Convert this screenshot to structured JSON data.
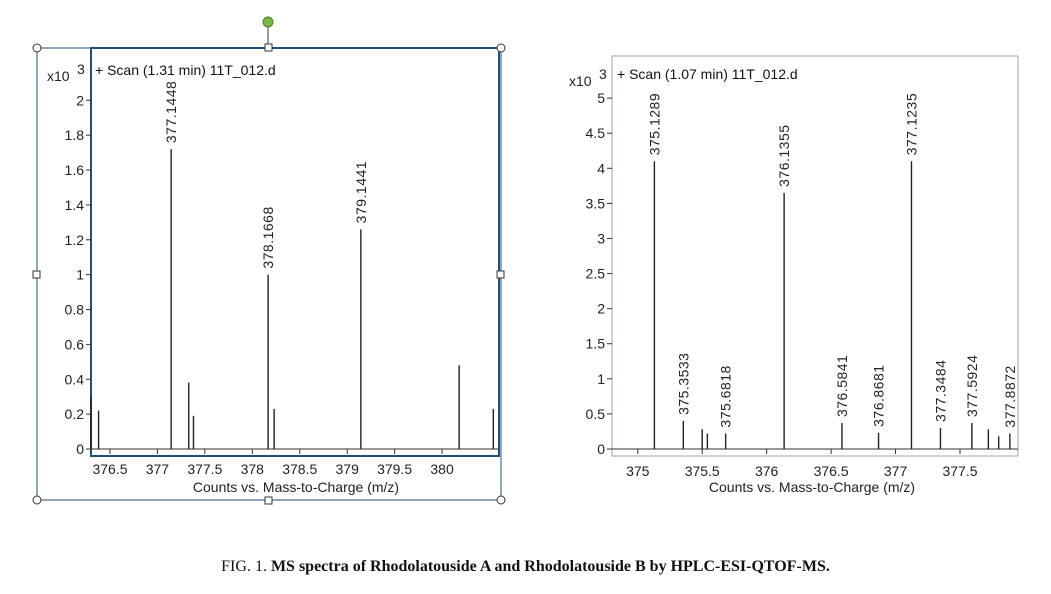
{
  "caption": {
    "prefix": "FIG. 1.",
    "text": "MS spectra of Rhodolatouside A and Rhodolatouside B by HPLC-ESI-QTOF-MS."
  },
  "colors": {
    "frame": "#1f4e79",
    "bar": "#222222",
    "handle_fill": "#ffffff",
    "rotate_handle": "#7ab648"
  },
  "chart_data": [
    {
      "type": "bar",
      "scan_label": "+ Scan (1.31 min) 11T_012.d",
      "y_scale_label": "x10",
      "y_scale_exp": "3",
      "xlabel": "Counts vs. Mass-to-Charge (m/z)",
      "xlim": [
        376.3,
        380.6
      ],
      "ylim": [
        0,
        2.3
      ],
      "xticks": [
        {
          "v": 376.5,
          "t": "376.5"
        },
        {
          "v": 377,
          "t": "377"
        },
        {
          "v": 377.5,
          "t": "377.5"
        },
        {
          "v": 378,
          "t": "378"
        },
        {
          "v": 378.5,
          "t": "378.5"
        },
        {
          "v": 379,
          "t": "379"
        },
        {
          "v": 379.5,
          "t": "379.5"
        },
        {
          "v": 380,
          "t": "380"
        }
      ],
      "yticks": [
        {
          "v": 0,
          "t": "0"
        },
        {
          "v": 0.2,
          "t": "0.2"
        },
        {
          "v": 0.4,
          "t": "0.4"
        },
        {
          "v": 0.6,
          "t": "0.6"
        },
        {
          "v": 0.8,
          "t": "0.8"
        },
        {
          "v": 1,
          "t": "1"
        },
        {
          "v": 1.2,
          "t": "1.2"
        },
        {
          "v": 1.4,
          "t": "1.4"
        },
        {
          "v": 1.6,
          "t": "1.6"
        },
        {
          "v": 1.8,
          "t": "1.8"
        },
        {
          "v": 2,
          "t": "2"
        }
      ],
      "peaks": [
        {
          "mz": 376.3,
          "value": 0.3
        },
        {
          "mz": 376.38,
          "value": 0.22
        },
        {
          "mz": 377.1448,
          "value": 1.72,
          "label": "377.1448"
        },
        {
          "mz": 377.33,
          "value": 0.38
        },
        {
          "mz": 377.38,
          "value": 0.19
        },
        {
          "mz": 378.1668,
          "value": 1.0,
          "label": "378.1668"
        },
        {
          "mz": 378.23,
          "value": 0.23
        },
        {
          "mz": 379.1441,
          "value": 1.26,
          "label": "379.1441"
        },
        {
          "mz": 380.18,
          "value": 0.48
        },
        {
          "mz": 380.54,
          "value": 0.23
        }
      ]
    },
    {
      "type": "bar",
      "scan_label": "+ Scan (1.07 min) 11T_012.d",
      "y_scale_label": "x10",
      "y_scale_exp": "3",
      "xlabel": "Counts vs. Mass-to-Charge (m/z)",
      "xlim": [
        374.8,
        377.95
      ],
      "ylim": [
        0,
        5.6
      ],
      "xticks": [
        {
          "v": 375,
          "t": "375"
        },
        {
          "v": 375.5,
          "t": "375.5"
        },
        {
          "v": 376,
          "t": "376"
        },
        {
          "v": 376.5,
          "t": "376.5"
        },
        {
          "v": 377,
          "t": "377"
        },
        {
          "v": 377.5,
          "t": "377.5"
        }
      ],
      "yticks": [
        {
          "v": 0,
          "t": "0"
        },
        {
          "v": 0.5,
          "t": "0.5"
        },
        {
          "v": 1,
          "t": "1"
        },
        {
          "v": 1.5,
          "t": "1.5"
        },
        {
          "v": 2,
          "t": "2"
        },
        {
          "v": 2.5,
          "t": "2.5"
        },
        {
          "v": 3,
          "t": "3"
        },
        {
          "v": 3.5,
          "t": "3.5"
        },
        {
          "v": 4,
          "t": "4"
        },
        {
          "v": 4.5,
          "t": "4.5"
        },
        {
          "v": 5,
          "t": "5"
        }
      ],
      "peaks": [
        {
          "mz": 375.1289,
          "value": 4.1,
          "label": "375.1289"
        },
        {
          "mz": 375.3533,
          "value": 0.4,
          "label": "375.3533"
        },
        {
          "mz": 375.5,
          "value": 0.28
        },
        {
          "mz": 375.54,
          "value": 0.22
        },
        {
          "mz": 375.6818,
          "value": 0.22,
          "label": "375.6818"
        },
        {
          "mz": 376.1355,
          "value": 3.65,
          "label": "376.1355"
        },
        {
          "mz": 376.5841,
          "value": 0.37,
          "label": "376.5841"
        },
        {
          "mz": 376.8681,
          "value": 0.23,
          "label": "376.8681"
        },
        {
          "mz": 377.1235,
          "value": 4.1,
          "label": "377.1235"
        },
        {
          "mz": 377.3484,
          "value": 0.3,
          "label": "377.3484"
        },
        {
          "mz": 377.5924,
          "value": 0.37,
          "label": "377.5924"
        },
        {
          "mz": 377.72,
          "value": 0.28
        },
        {
          "mz": 377.8,
          "value": 0.18
        },
        {
          "mz": 377.8872,
          "value": 0.22,
          "label": "377.8872"
        }
      ]
    }
  ]
}
